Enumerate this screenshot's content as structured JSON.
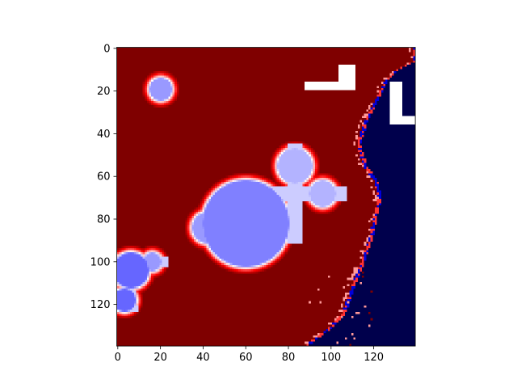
{
  "chart_data": {
    "type": "heatmap",
    "title": "",
    "xlabel": "",
    "ylabel": "",
    "colormap": "seismic",
    "colormap_stops": [
      "#00004c",
      "#0000ff",
      "#ffffff",
      "#ff0000",
      "#7f0000"
    ],
    "grid": false,
    "legend": "none",
    "image_size": [
      140,
      140
    ],
    "xlim": [
      -0.5,
      139.5
    ],
    "ylim": [
      139.5,
      -0.5
    ],
    "x_ticks": [
      0,
      20,
      40,
      60,
      80,
      100,
      120
    ],
    "y_ticks": [
      0,
      20,
      40,
      60,
      80,
      100,
      120
    ],
    "x_tick_labels": [
      "0",
      "20",
      "40",
      "60",
      "80",
      "100",
      "120"
    ],
    "y_tick_labels": [
      "0",
      "20",
      "40",
      "60",
      "80",
      "100",
      "120"
    ],
    "background_value": 1.0,
    "low_region": {
      "value": -1.0,
      "boundary_x_by_y": [
        [
          0,
          138
        ],
        [
          6,
          138
        ],
        [
          10,
          130
        ],
        [
          15,
          125
        ],
        [
          25,
          120
        ],
        [
          35,
          115
        ],
        [
          45,
          112
        ],
        [
          55,
          115
        ],
        [
          62,
          120
        ],
        [
          70,
          122
        ],
        [
          78,
          120
        ],
        [
          88,
          118
        ],
        [
          100,
          114
        ],
        [
          110,
          110
        ],
        [
          116,
          108
        ],
        [
          124,
          105
        ],
        [
          130,
          100
        ],
        [
          136,
          92
        ],
        [
          139,
          88
        ]
      ]
    },
    "features": [
      {
        "kind": "blob",
        "cx": 20,
        "cy": 19,
        "r": 5,
        "min_value": -0.2
      },
      {
        "kind": "blob",
        "cx": 60,
        "cy": 82,
        "r": 20,
        "min_value": -0.25
      },
      {
        "kind": "blob",
        "cx": 83,
        "cy": 55,
        "r": 8,
        "min_value": -0.15
      },
      {
        "kind": "blob",
        "cx": 96,
        "cy": 68,
        "r": 6,
        "min_value": -0.15
      },
      {
        "kind": "blob",
        "cx": 42,
        "cy": 84,
        "r": 7,
        "min_value": -0.2
      },
      {
        "kind": "blob",
        "cx": 6,
        "cy": 104,
        "r": 8,
        "min_value": -0.3
      },
      {
        "kind": "blob",
        "cx": 3,
        "cy": 118,
        "r": 5,
        "min_value": -0.3
      },
      {
        "kind": "blob",
        "cx": 16,
        "cy": 100,
        "r": 4,
        "min_value": -0.2
      }
    ],
    "masked_regions": [
      {
        "x": [
          88,
          112
        ],
        "y": [
          16,
          20
        ]
      },
      {
        "x": [
          104,
          112
        ],
        "y": [
          8,
          20
        ]
      },
      {
        "x": [
          128,
          134
        ],
        "y": [
          16,
          36
        ]
      },
      {
        "x": [
          128,
          140
        ],
        "y": [
          32,
          36
        ]
      }
    ]
  }
}
